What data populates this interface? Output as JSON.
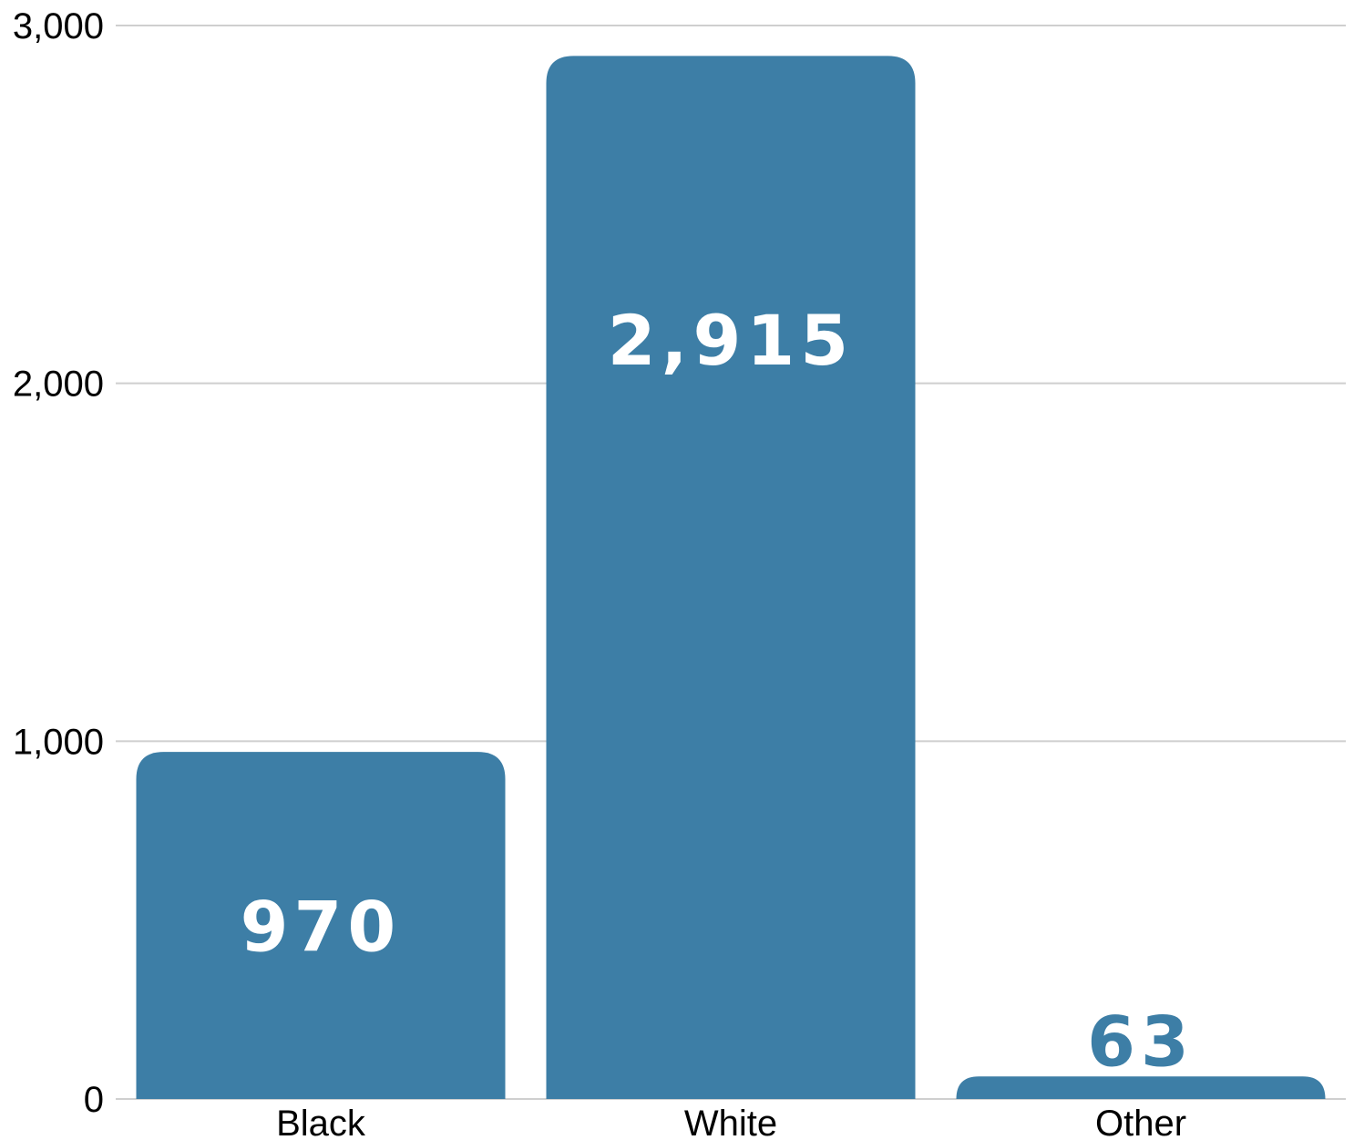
{
  "chart_data": {
    "type": "bar",
    "categories": [
      "Black",
      "White",
      "Other"
    ],
    "values": [
      970,
      2915,
      63
    ],
    "data_labels": [
      "970",
      "2,915",
      "63"
    ],
    "title": "",
    "xlabel": "",
    "ylabel": "",
    "ylim": [
      0,
      3000
    ],
    "yticks": [
      0,
      1000,
      2000,
      3000
    ],
    "ytick_labels": [
      "0",
      "1,000",
      "2,000",
      "3,000"
    ],
    "grid": true,
    "bar_color": "#3d7ea6",
    "label_inside_color": "#ffffff",
    "label_outside_color": "#3d7ea6"
  }
}
